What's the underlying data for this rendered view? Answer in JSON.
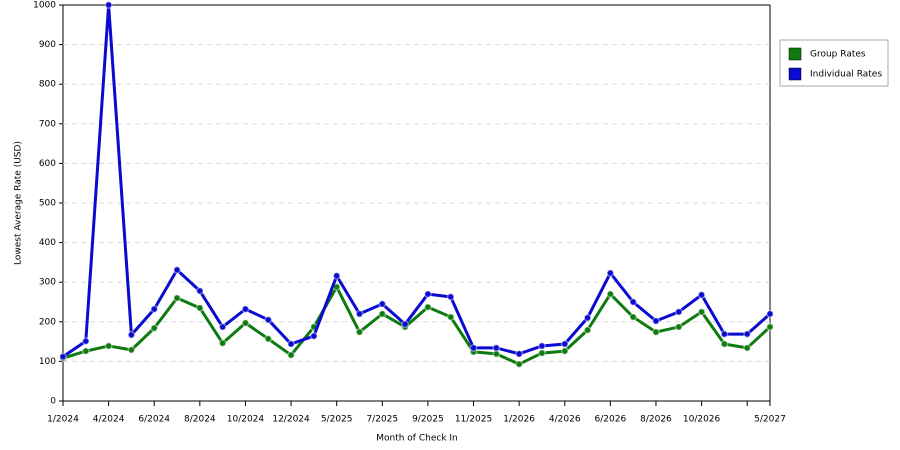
{
  "chart_data": {
    "type": "line",
    "x_label": "Month of Check In",
    "y_label": "Lowest Average Rate (USD)",
    "categories": [
      "1/2024",
      null,
      "4/2024",
      null,
      "6/2024",
      null,
      "8/2024",
      null,
      "10/2024",
      null,
      "12/2024",
      null,
      "5/2025",
      null,
      "7/2025",
      null,
      "9/2025",
      null,
      "11/2025",
      null,
      "1/2026",
      null,
      "4/2026",
      null,
      "6/2026",
      null,
      "8/2026",
      null,
      "10/2026",
      null,
      null,
      "5/2027"
    ],
    "series": [
      {
        "name": "Group Rates",
        "color": "#0f7a0f",
        "values": [
          108,
          126,
          139,
          129,
          184,
          260,
          235,
          146,
          197,
          157,
          116,
          187,
          288,
          174,
          220,
          187,
          237,
          212,
          124,
          119,
          93,
          121,
          126,
          179,
          270,
          212,
          174,
          187,
          225,
          144,
          134,
          187
        ]
      },
      {
        "name": "Individual Rates",
        "color": "#0a0ad0",
        "values": [
          112,
          151,
          1000,
          167,
          232,
          331,
          278,
          187,
          232,
          205,
          144,
          164,
          316,
          220,
          245,
          194,
          270,
          263,
          134,
          134,
          119,
          139,
          144,
          210,
          323,
          250,
          202,
          225,
          268,
          169,
          169,
          220
        ]
      }
    ],
    "ylim": [
      0,
      1000
    ],
    "yticks": [
      0,
      100,
      200,
      300,
      400,
      500,
      600,
      700,
      800,
      900,
      1000
    ],
    "grid": true,
    "legend": "right"
  }
}
